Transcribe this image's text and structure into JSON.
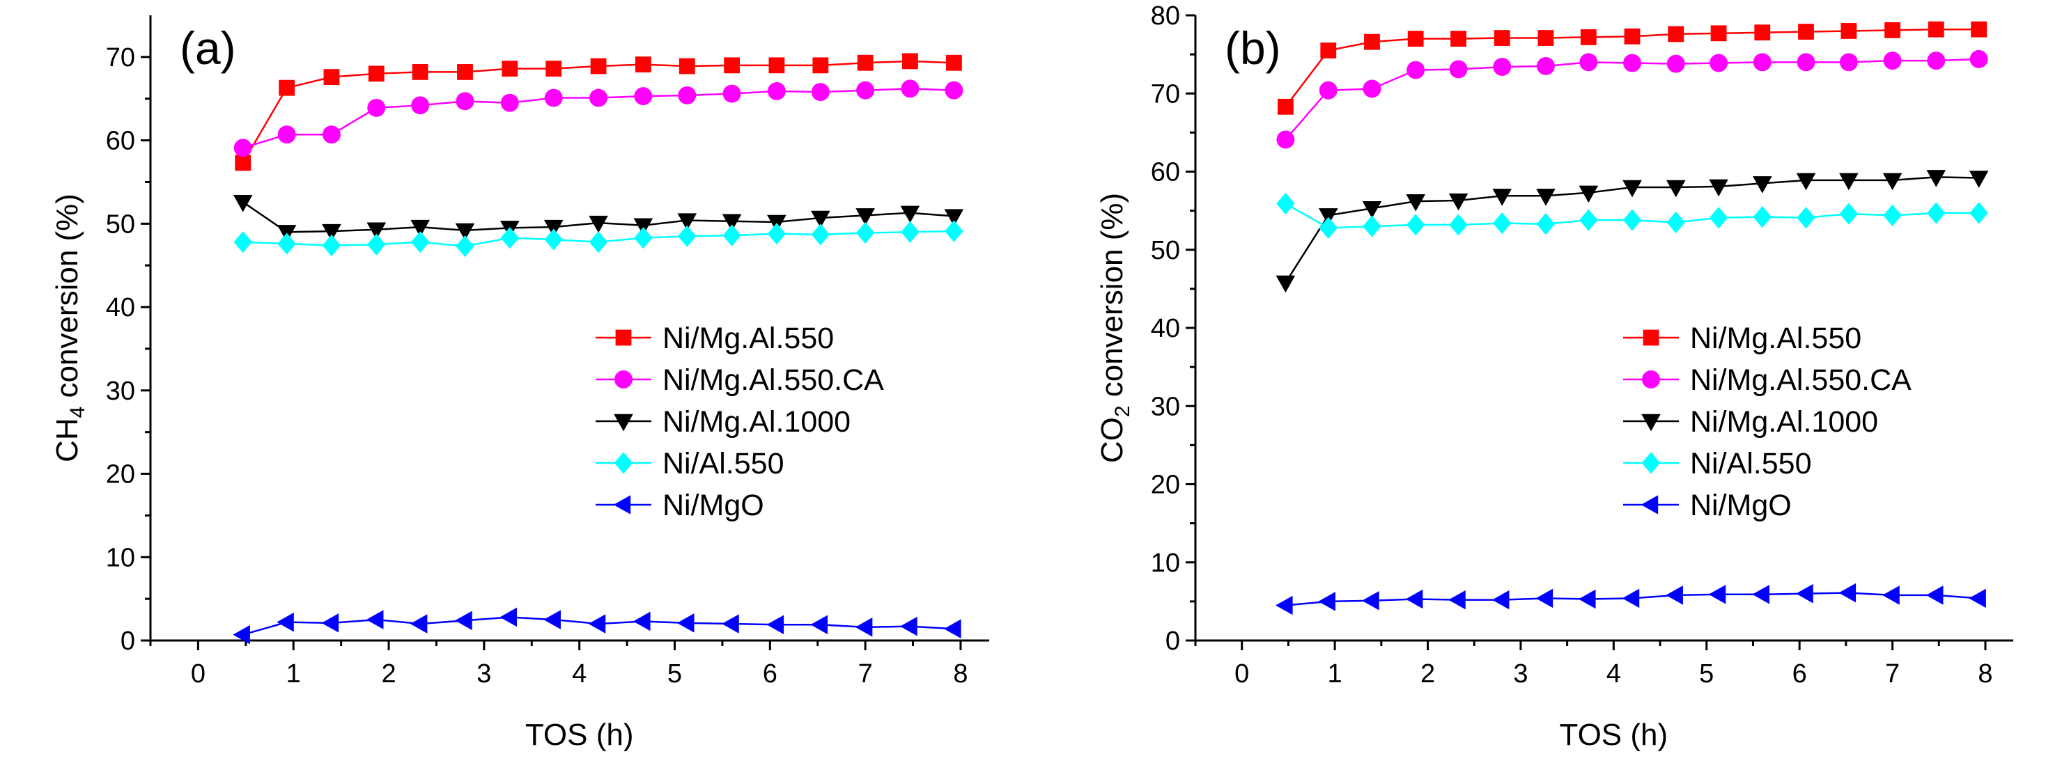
{
  "chart_data": [
    {
      "type": "line",
      "panel_label": "(a)",
      "xlabel": "TOS (h)",
      "ylabel_main": "CH",
      "ylabel_sub": "4",
      "ylabel_tail": " conversion (%)",
      "xlim": [
        -0.5,
        8.3
      ],
      "ylim": [
        0,
        75
      ],
      "xticks": [
        0,
        1,
        2,
        3,
        4,
        5,
        6,
        7,
        8
      ],
      "yticks": [
        0,
        10,
        20,
        30,
        40,
        50,
        60,
        70
      ],
      "x": [
        0.47,
        0.93,
        1.4,
        1.87,
        2.33,
        2.8,
        3.27,
        3.73,
        4.2,
        4.67,
        5.13,
        5.6,
        6.07,
        6.53,
        7.0,
        7.47,
        7.93
      ],
      "legend_position": "center-right",
      "series": [
        {
          "name": "Ni/Mg.Al.550",
          "color": "#ff0000",
          "marker": "square",
          "values": [
            57.3,
            66.3,
            67.6,
            68.0,
            68.2,
            68.2,
            68.6,
            68.6,
            68.9,
            69.1,
            68.9,
            69.0,
            69.0,
            69.0,
            69.3,
            69.5,
            69.3
          ]
        },
        {
          "name": "Ni/Mg.Al.550.CA",
          "color": "#ff00ff",
          "marker": "circle",
          "values": [
            59.1,
            60.7,
            60.7,
            63.9,
            64.2,
            64.7,
            64.5,
            65.1,
            65.1,
            65.3,
            65.4,
            65.6,
            65.9,
            65.8,
            66.0,
            66.2,
            66.0
          ]
        },
        {
          "name": "Ni/Mg.Al.1000",
          "color": "#000000",
          "marker": "triangle-down",
          "values": [
            52.6,
            49.0,
            49.1,
            49.3,
            49.6,
            49.2,
            49.5,
            49.6,
            50.1,
            49.8,
            50.4,
            50.3,
            50.2,
            50.7,
            51.0,
            51.3,
            50.9
          ]
        },
        {
          "name": "Ni/Al.550",
          "color": "#00ffff",
          "marker": "diamond",
          "values": [
            47.8,
            47.6,
            47.4,
            47.5,
            47.8,
            47.3,
            48.3,
            48.1,
            47.8,
            48.3,
            48.5,
            48.6,
            48.8,
            48.7,
            48.9,
            49.0,
            49.1
          ]
        },
        {
          "name": "Ni/MgO",
          "color": "#0000ff",
          "marker": "triangle-left",
          "values": [
            0.7,
            2.2,
            2.1,
            2.5,
            2.0,
            2.4,
            2.8,
            2.5,
            2.0,
            2.3,
            2.1,
            2.0,
            1.9,
            1.9,
            1.6,
            1.7,
            1.4
          ]
        }
      ]
    },
    {
      "type": "line",
      "panel_label": "(b)",
      "xlabel": "TOS (h)",
      "ylabel_main": "CO",
      "ylabel_sub": "2",
      "ylabel_tail": " conversion (%)",
      "xlim": [
        -0.5,
        8.3
      ],
      "ylim": [
        0,
        80
      ],
      "xticks": [
        0,
        1,
        2,
        3,
        4,
        5,
        6,
        7,
        8
      ],
      "yticks": [
        0,
        10,
        20,
        30,
        40,
        50,
        60,
        70,
        80
      ],
      "x": [
        0.47,
        0.93,
        1.4,
        1.87,
        2.33,
        2.8,
        3.27,
        3.73,
        4.2,
        4.67,
        5.13,
        5.6,
        6.07,
        6.53,
        7.0,
        7.47,
        7.93
      ],
      "legend_position": "center-right",
      "series": [
        {
          "name": "Ni/Mg.Al.550",
          "color": "#ff0000",
          "marker": "square",
          "values": [
            68.3,
            75.5,
            76.6,
            77.0,
            77.0,
            77.1,
            77.1,
            77.2,
            77.3,
            77.6,
            77.7,
            77.8,
            77.9,
            78.0,
            78.1,
            78.2,
            78.2
          ]
        },
        {
          "name": "Ni/Mg.Al.550.CA",
          "color": "#ff00ff",
          "marker": "circle",
          "values": [
            64.1,
            70.4,
            70.6,
            73.0,
            73.1,
            73.4,
            73.5,
            74.0,
            73.9,
            73.8,
            73.9,
            74.0,
            74.0,
            74.0,
            74.2,
            74.2,
            74.4
          ]
        },
        {
          "name": "Ni/Mg.Al.1000",
          "color": "#000000",
          "marker": "triangle-down",
          "values": [
            45.8,
            54.4,
            55.3,
            56.2,
            56.3,
            56.9,
            56.9,
            57.3,
            58.0,
            58.0,
            58.1,
            58.5,
            58.9,
            58.9,
            58.9,
            59.3,
            59.2
          ]
        },
        {
          "name": "Ni/Al.550",
          "color": "#00ffff",
          "marker": "diamond",
          "values": [
            55.9,
            52.8,
            53.0,
            53.2,
            53.2,
            53.4,
            53.3,
            53.8,
            53.8,
            53.5,
            54.1,
            54.2,
            54.1,
            54.6,
            54.4,
            54.7,
            54.7
          ]
        },
        {
          "name": "Ni/MgO",
          "color": "#0000ff",
          "marker": "triangle-left",
          "values": [
            4.5,
            5.0,
            5.1,
            5.3,
            5.2,
            5.2,
            5.4,
            5.3,
            5.4,
            5.8,
            5.9,
            5.9,
            6.0,
            6.1,
            5.8,
            5.8,
            5.4
          ]
        }
      ]
    }
  ]
}
